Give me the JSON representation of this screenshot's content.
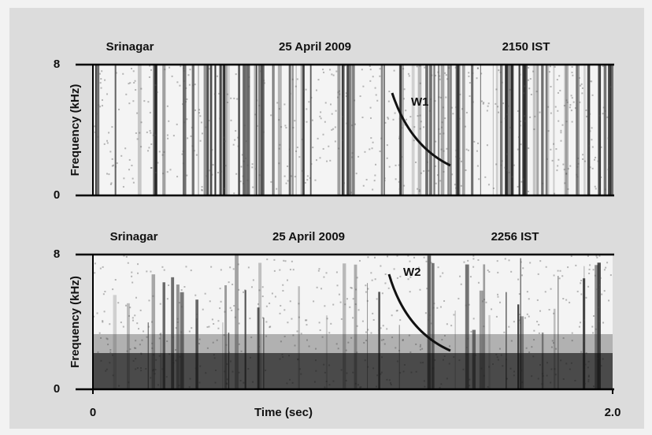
{
  "chart_data": [
    {
      "type": "spectrogram",
      "title_left": "Srinagar",
      "title": "25 April 2009",
      "title_right": "2150 IST",
      "ylabel": "Frequency (kHz)",
      "ylim": [
        0,
        8
      ],
      "yticks": [
        0,
        8
      ],
      "xlim": [
        0,
        2
      ],
      "annotations": [
        "W1"
      ]
    },
    {
      "type": "spectrogram",
      "title_left": "Srinagar",
      "title": "25 April 2009",
      "title_right": "2256 IST",
      "ylabel": "Frequency (kHz)",
      "xlabel": "Time (sec)",
      "ylim": [
        0,
        8
      ],
      "yticks": [
        0,
        8
      ],
      "xlim": [
        0,
        2
      ],
      "xticks": [
        0,
        {
          "value": 2,
          "label": "2.0"
        }
      ],
      "annotations": [
        "W2"
      ]
    }
  ]
}
